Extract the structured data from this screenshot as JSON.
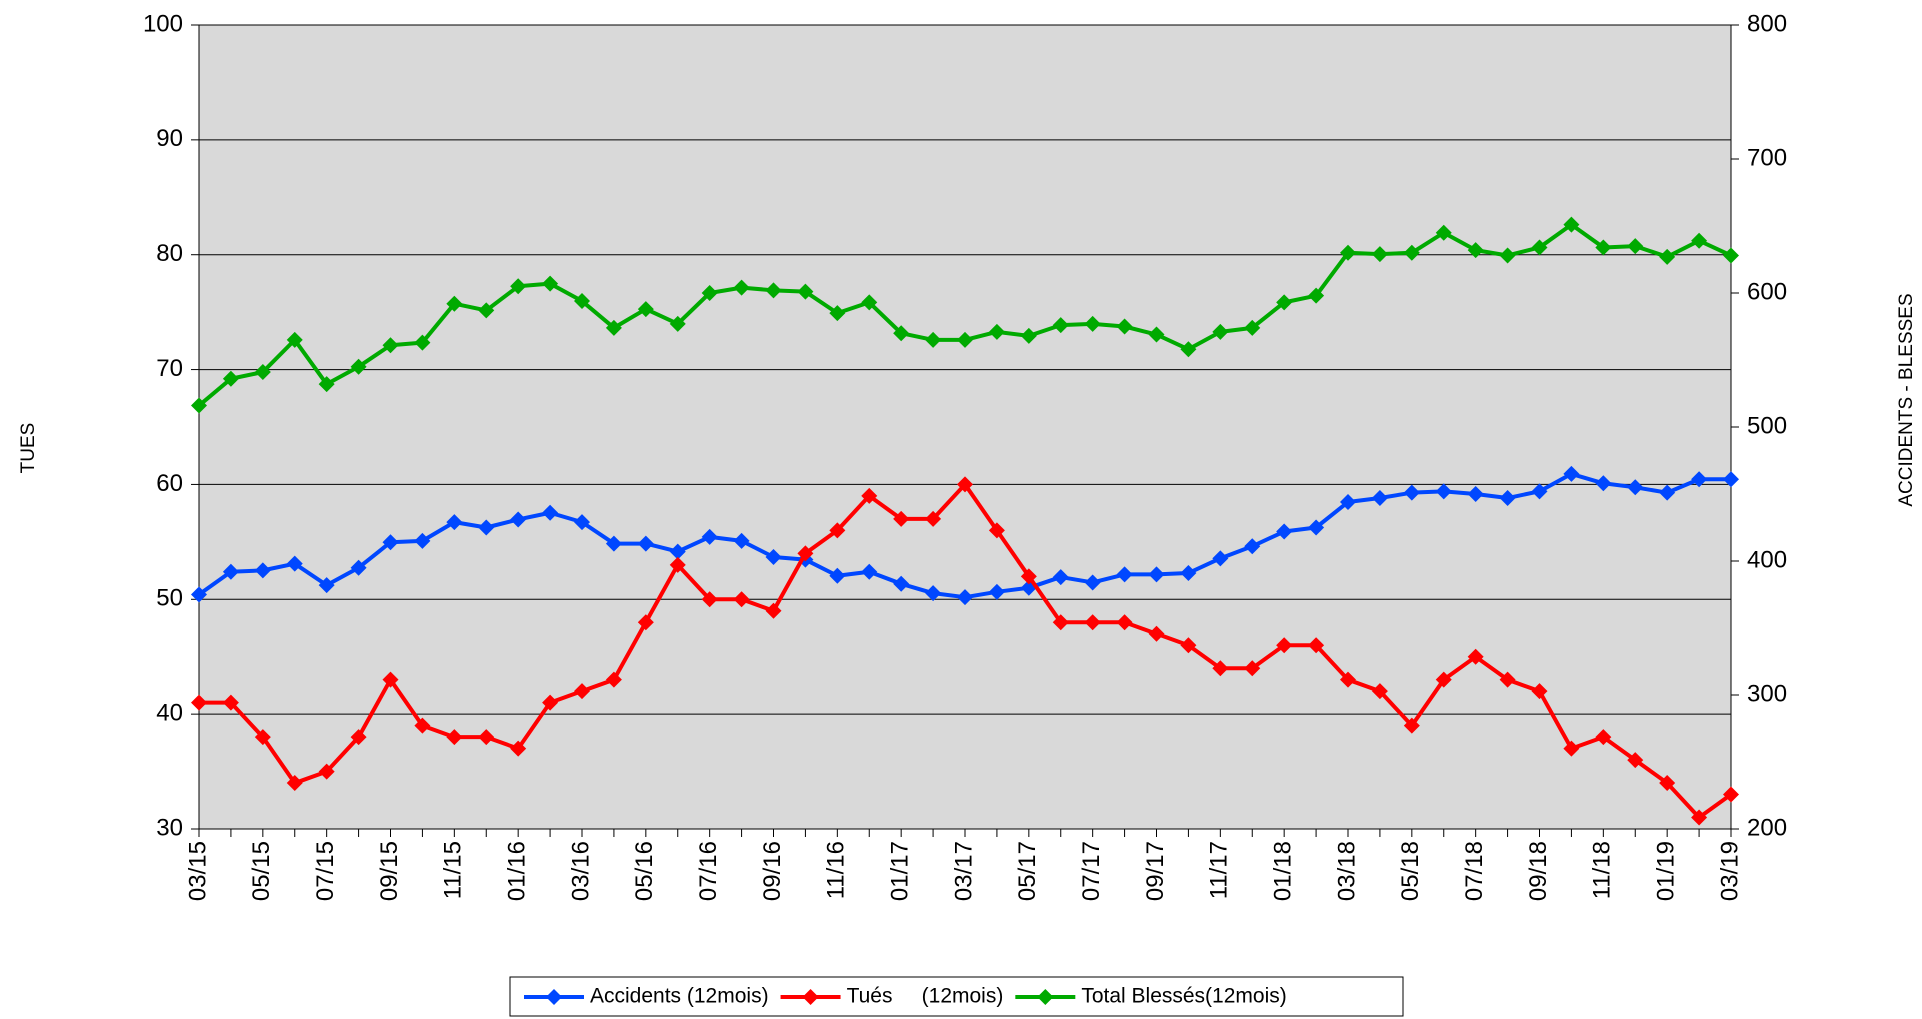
{
  "chart_data": {
    "type": "line",
    "y_label": "TUES",
    "y2_label": "ACCIDENTS - BLESSES",
    "categories": [
      "03/15",
      null,
      "05/15",
      null,
      "07/15",
      null,
      "09/15",
      null,
      "11/15",
      null,
      "01/16",
      null,
      "03/16",
      null,
      "05/16",
      null,
      "07/16",
      null,
      "09/16",
      null,
      "11/16",
      null,
      "01/17",
      null,
      "03/17",
      null,
      "05/17",
      null,
      "07/17",
      null,
      "09/17",
      null,
      "11/17",
      null,
      "01/18",
      null,
      "03/18",
      null,
      "05/18",
      null,
      "07/18",
      null,
      "09/18",
      null,
      "11/18",
      null,
      "01/19",
      null,
      "03/19"
    ],
    "ylim": [
      30,
      100
    ],
    "yticks": [
      30,
      40,
      50,
      60,
      70,
      80,
      90,
      100
    ],
    "y2lim": [
      200,
      800
    ],
    "y2ticks": [
      200,
      300,
      400,
      500,
      600,
      700,
      800
    ],
    "grid": true,
    "plot_background": "#d9d9d9",
    "legend_position": "bottom",
    "series": [
      {
        "name": "Accidents (12mois)",
        "color": "#0047ff",
        "axis": "y2",
        "values": [
          375,
          392,
          393,
          398,
          382,
          395,
          414,
          415,
          429,
          425,
          431,
          436,
          429,
          413,
          413,
          407,
          418,
          415,
          403,
          401,
          389,
          392,
          383,
          376,
          373,
          377,
          380,
          388,
          384,
          390,
          390,
          391,
          402,
          411,
          422,
          425,
          444,
          447,
          451,
          452,
          450,
          447,
          452,
          465,
          458,
          455,
          451,
          461,
          461
        ]
      },
      {
        "name": "Tués     (12mois)",
        "color": "#ff0000",
        "values": [
          41,
          41,
          38,
          34,
          35,
          38,
          43,
          39,
          38,
          38,
          37,
          41,
          42,
          43,
          48,
          53,
          50,
          50,
          49,
          54,
          56,
          59,
          57,
          57,
          60,
          56,
          52,
          48,
          48,
          48,
          47,
          46,
          44,
          44,
          46,
          46,
          43,
          42,
          39,
          43,
          45,
          43,
          42,
          37,
          38,
          36,
          34,
          31,
          33
        ]
      },
      {
        "name": "Total Blessés(12mois)",
        "color": "#00aa00",
        "axis": "y2",
        "values": [
          516,
          536,
          541,
          565,
          532,
          545,
          561,
          563,
          592,
          587,
          605,
          607,
          594,
          574,
          588,
          577,
          600,
          604,
          602,
          601,
          585,
          593,
          570,
          565,
          565,
          571,
          568,
          576,
          577,
          575,
          569,
          558,
          571,
          574,
          593,
          598,
          630,
          629,
          630,
          645,
          632,
          628,
          634,
          651,
          634,
          635,
          627,
          639,
          628
        ]
      }
    ]
  }
}
